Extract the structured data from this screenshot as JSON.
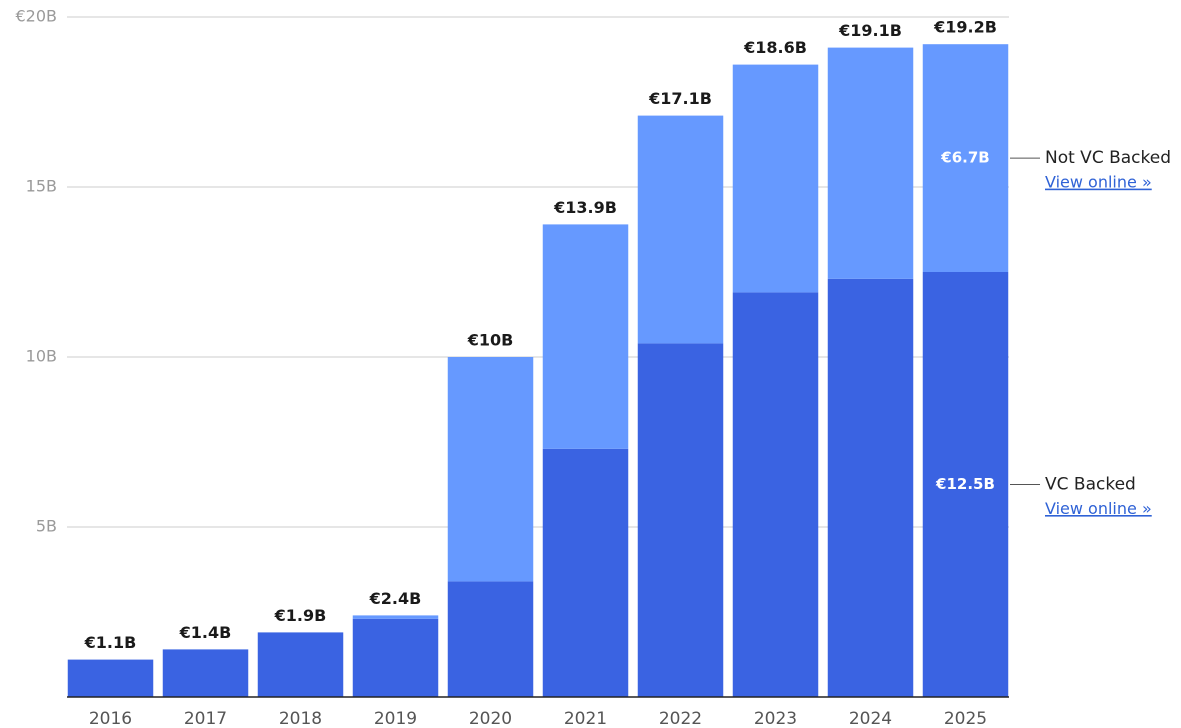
{
  "chart_data": {
    "type": "stacked-bar",
    "categories": [
      "2016",
      "2017",
      "2018",
      "2019",
      "2020",
      "2021",
      "2022",
      "2023",
      "2024",
      "2025"
    ],
    "series": [
      {
        "name": "VC Backed",
        "color": "#3a63e2",
        "link": "View online »",
        "values": [
          1.1,
          1.4,
          1.9,
          2.3,
          3.4,
          7.3,
          10.4,
          11.9,
          12.3,
          12.5
        ],
        "value_labels": [
          null,
          null,
          null,
          null,
          null,
          null,
          null,
          null,
          null,
          "€12.5B"
        ]
      },
      {
        "name": "Not VC Backed",
        "color": "#6699ff",
        "link": "View online »",
        "values": [
          0,
          0,
          0,
          0.1,
          6.6,
          6.6,
          6.7,
          6.7,
          6.8,
          6.7
        ],
        "value_labels": [
          null,
          null,
          null,
          null,
          null,
          null,
          null,
          null,
          null,
          "€6.7B"
        ]
      }
    ],
    "totals": {
      "values": [
        1.1,
        1.4,
        1.9,
        2.4,
        10,
        13.9,
        17.1,
        18.6,
        19.1,
        19.2
      ],
      "value_labels": [
        "€1.1B",
        "€1.4B",
        "€1.9B",
        "€2.4B",
        "€10B",
        "€13.9B",
        "€17.1B",
        "€18.6B",
        "€19.1B",
        "€19.2B"
      ]
    },
    "ylim": [
      0,
      20
    ],
    "yticks": [
      {
        "value": 5,
        "label": "5B"
      },
      {
        "value": 10,
        "label": "10B"
      },
      {
        "value": 15,
        "label": "15B"
      },
      {
        "value": 20,
        "label": "€20B"
      }
    ],
    "grid": true
  }
}
